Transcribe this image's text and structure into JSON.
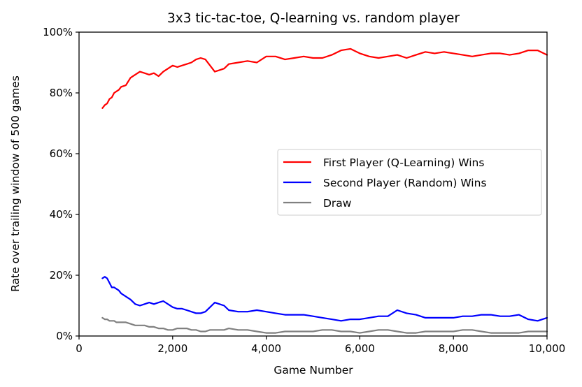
{
  "chart_data": {
    "type": "line",
    "title": "3x3 tic-tac-toe, Q-learning vs. random player",
    "xlabel": "Game Number",
    "ylabel": "Rate over trailing window of 500 games",
    "xlim": [
      0,
      10000
    ],
    "ylim": [
      0,
      100
    ],
    "xticks": [
      0,
      2000,
      4000,
      6000,
      8000,
      10000
    ],
    "xtick_labels": [
      "0",
      "2,000",
      "4,000",
      "6,000",
      "8,000",
      "10,000"
    ],
    "yticks": [
      0,
      20,
      40,
      60,
      80,
      100
    ],
    "ytick_labels": [
      "0%",
      "20%",
      "40%",
      "60%",
      "80%",
      "100%"
    ],
    "grid": false,
    "legend_position": "center-right",
    "series": [
      {
        "name": "First Player (Q-Learning) Wins",
        "color": "#ff0000",
        "x": [
          500,
          550,
          600,
          650,
          700,
          750,
          800,
          850,
          900,
          1000,
          1100,
          1200,
          1300,
          1400,
          1500,
          1600,
          1700,
          1800,
          1900,
          2000,
          2100,
          2200,
          2300,
          2400,
          2500,
          2600,
          2700,
          2800,
          2900,
          3000,
          3100,
          3200,
          3400,
          3600,
          3800,
          4000,
          4200,
          4400,
          4600,
          4800,
          5000,
          5200,
          5400,
          5600,
          5800,
          6000,
          6200,
          6400,
          6600,
          6800,
          7000,
          7200,
          7400,
          7600,
          7800,
          8000,
          8200,
          8400,
          8600,
          8800,
          9000,
          9200,
          9400,
          9600,
          9800,
          10000
        ],
        "y": [
          75,
          76,
          76.5,
          78,
          78.5,
          80,
          80.5,
          81,
          82,
          82.5,
          85,
          86,
          87,
          86.5,
          86,
          86.5,
          85.5,
          87,
          88,
          89,
          88.5,
          89,
          89.5,
          90,
          91,
          91.5,
          91,
          89,
          87,
          87.5,
          88,
          89.5,
          90,
          90.5,
          90,
          92,
          92,
          91,
          91.5,
          92,
          91.5,
          91.5,
          92.5,
          94,
          94.5,
          93,
          92,
          91.5,
          92,
          92.5,
          91.5,
          92.5,
          93.5,
          93,
          93.5,
          93,
          92.5,
          92,
          92.5,
          93,
          93,
          92.5,
          93,
          94,
          94,
          92.5
        ]
      },
      {
        "name": "Second Player (Random) Wins",
        "color": "#0000ff",
        "x": [
          500,
          550,
          600,
          650,
          700,
          750,
          800,
          850,
          900,
          1000,
          1100,
          1200,
          1300,
          1400,
          1500,
          1600,
          1700,
          1800,
          1900,
          2000,
          2100,
          2200,
          2300,
          2400,
          2500,
          2600,
          2700,
          2800,
          2900,
          3000,
          3100,
          3200,
          3400,
          3600,
          3800,
          4000,
          4200,
          4400,
          4600,
          4800,
          5000,
          5200,
          5400,
          5600,
          5800,
          6000,
          6200,
          6400,
          6600,
          6800,
          7000,
          7200,
          7400,
          7600,
          7800,
          8000,
          8200,
          8400,
          8600,
          8800,
          9000,
          9200,
          9400,
          9600,
          9800,
          10000
        ],
        "y": [
          19,
          19.5,
          19,
          17.5,
          16,
          16,
          15.5,
          15,
          14,
          13,
          12,
          10.5,
          10,
          10.5,
          11,
          10.5,
          11,
          11.5,
          10.5,
          9.5,
          9,
          9,
          8.5,
          8,
          7.5,
          7.5,
          8,
          9.5,
          11,
          10.5,
          10,
          8.5,
          8,
          8,
          8.5,
          8,
          7.5,
          7,
          7,
          7,
          6.5,
          6,
          5.5,
          5,
          5.5,
          5.5,
          6,
          6.5,
          6.5,
          8.5,
          7.5,
          7,
          6,
          6,
          6,
          6,
          6.5,
          6.5,
          7,
          7,
          6.5,
          6.5,
          7,
          5.5,
          5,
          6
        ]
      },
      {
        "name": "Draw",
        "color": "#808080",
        "x": [
          500,
          550,
          600,
          650,
          700,
          750,
          800,
          850,
          900,
          1000,
          1100,
          1200,
          1300,
          1400,
          1500,
          1600,
          1700,
          1800,
          1900,
          2000,
          2100,
          2200,
          2300,
          2400,
          2500,
          2600,
          2700,
          2800,
          2900,
          3000,
          3100,
          3200,
          3400,
          3600,
          3800,
          4000,
          4200,
          4400,
          4600,
          4800,
          5000,
          5200,
          5400,
          5600,
          5800,
          6000,
          6200,
          6400,
          6600,
          6800,
          7000,
          7200,
          7400,
          7600,
          7800,
          8000,
          8200,
          8400,
          8600,
          8800,
          9000,
          9200,
          9400,
          9600,
          9800,
          10000
        ],
        "y": [
          6,
          5.5,
          5.5,
          5,
          5,
          5,
          4.5,
          4.5,
          4.5,
          4.5,
          4,
          3.5,
          3.5,
          3.5,
          3,
          3,
          2.5,
          2.5,
          2,
          2,
          2.5,
          2.5,
          2.5,
          2,
          2,
          1.5,
          1.5,
          2,
          2,
          2,
          2,
          2.5,
          2,
          2,
          1.5,
          1,
          1,
          1.5,
          1.5,
          1.5,
          1.5,
          2,
          2,
          1.5,
          1.5,
          1,
          1.5,
          2,
          2,
          1.5,
          1,
          1,
          1.5,
          1.5,
          1.5,
          1.5,
          2,
          2,
          1.5,
          1,
          1,
          1,
          1,
          1.5,
          1.5,
          1.5
        ]
      }
    ]
  }
}
